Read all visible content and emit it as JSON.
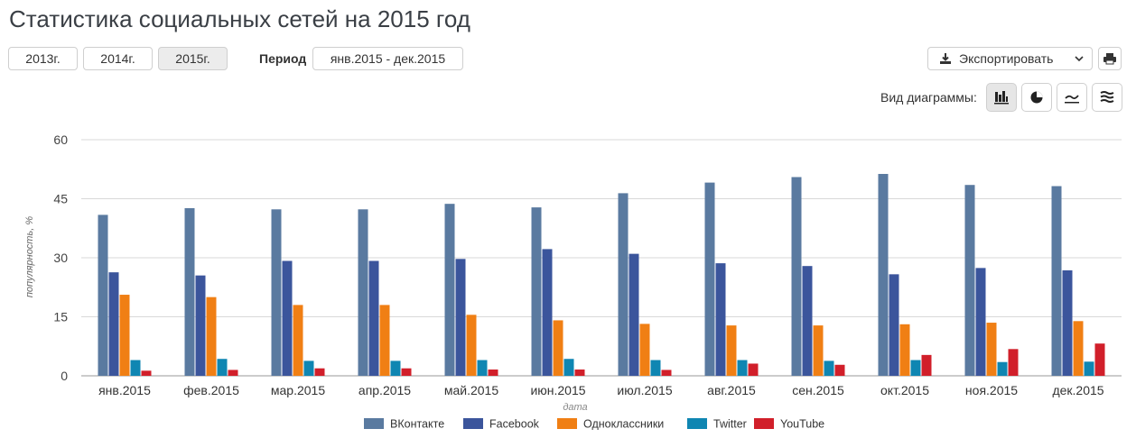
{
  "header": {
    "title": "Статистика социальных сетей на 2015 год"
  },
  "controls": {
    "years": [
      {
        "label": "2013г.",
        "active": false
      },
      {
        "label": "2014г.",
        "active": false
      },
      {
        "label": "2015г.",
        "active": true
      }
    ],
    "period_label": "Период",
    "period_value": "янв.2015 - дек.2015",
    "export_label": "Экспортировать",
    "view_label": "Вид диаграммы:",
    "view_icons": [
      "column-chart-icon",
      "pie-chart-icon",
      "line-chart-icon",
      "area-chart-icon"
    ],
    "active_view": "column-chart-icon"
  },
  "chart_data": {
    "type": "bar",
    "title": "",
    "xlabel": "дата",
    "ylabel": "популярность, %",
    "ylim": [
      0,
      60
    ],
    "yticks": [
      0,
      15,
      30,
      45,
      60
    ],
    "grid": true,
    "legend_position": "bottom",
    "categories": [
      "янв.2015",
      "фев.2015",
      "мар.2015",
      "апр.2015",
      "май.2015",
      "июн.2015",
      "июл.2015",
      "авг.2015",
      "сен.2015",
      "окт.2015",
      "ноя.2015",
      "дек.2015"
    ],
    "series": [
      {
        "name": "ВКонтакте",
        "color": "#5a7aa0",
        "values": [
          40.9,
          42.6,
          42.3,
          42.3,
          43.7,
          42.8,
          46.4,
          49.1,
          50.5,
          51.3,
          48.5,
          48.2
        ]
      },
      {
        "name": "Facebook",
        "color": "#3b559c",
        "values": [
          26.3,
          25.5,
          29.2,
          29.2,
          29.7,
          32.2,
          31.0,
          28.6,
          27.9,
          25.8,
          27.4,
          26.8
        ]
      },
      {
        "name": "Одноклассники",
        "color": "#f07f14",
        "values": [
          20.6,
          20.0,
          18.0,
          18.0,
          15.5,
          14.1,
          13.2,
          12.8,
          12.8,
          13.1,
          13.5,
          13.9
        ]
      },
      {
        "name": "Twitter",
        "color": "#0f86b2",
        "values": [
          4.0,
          4.3,
          3.8,
          3.8,
          4.0,
          4.3,
          4.0,
          4.0,
          3.8,
          4.0,
          3.5,
          3.6
        ]
      },
      {
        "name": "YouTube",
        "color": "#d11f2a",
        "values": [
          1.3,
          1.5,
          1.9,
          1.9,
          1.6,
          1.6,
          1.5,
          3.1,
          2.8,
          5.3,
          6.8,
          8.2
        ]
      }
    ]
  }
}
